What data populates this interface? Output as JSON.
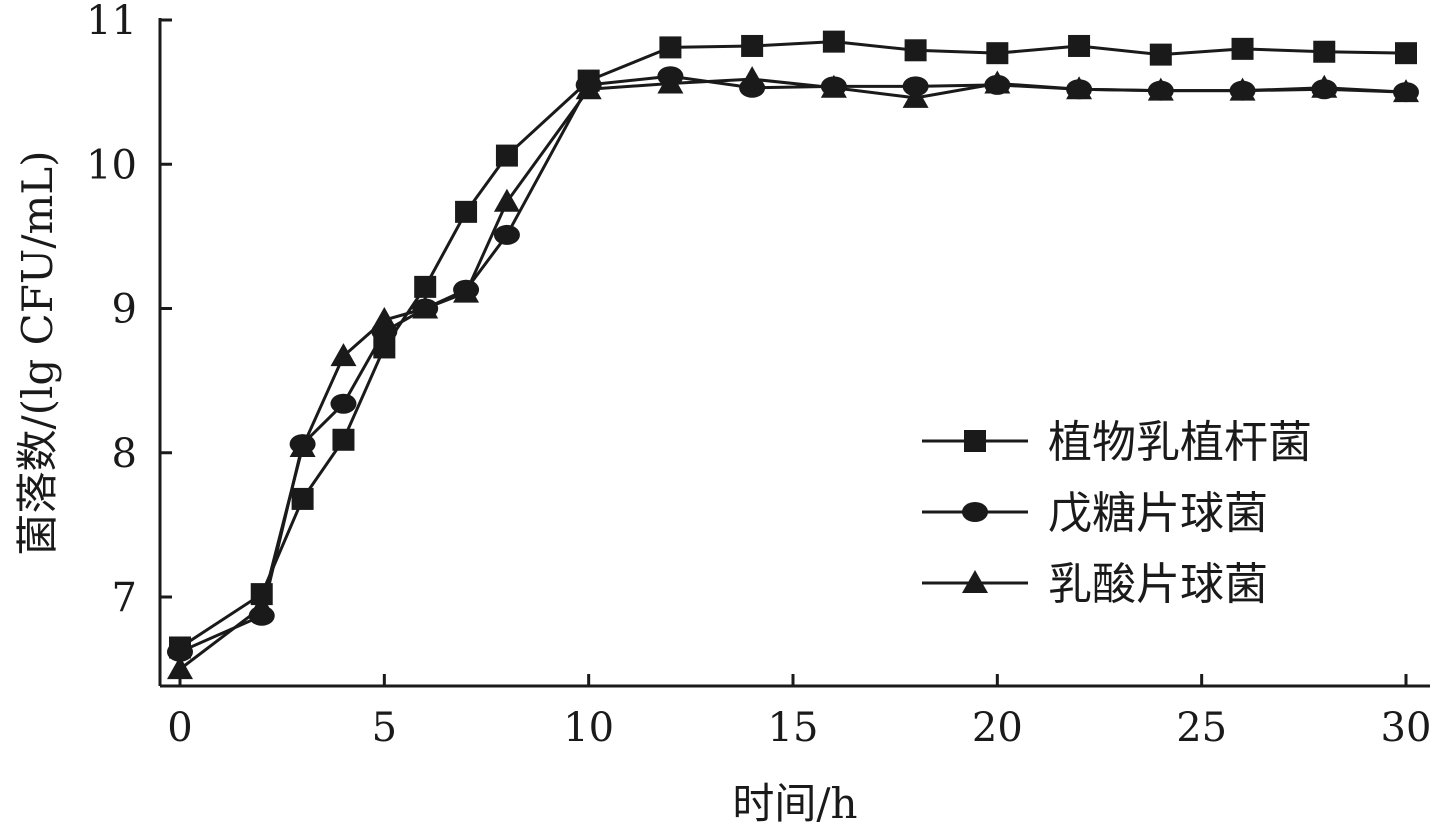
{
  "chart_data": {
    "type": "line",
    "title": "",
    "xlabel": "时间/h",
    "ylabel": "菌落数/(lg CFU/mL)",
    "xlim": [
      0,
      30
    ],
    "ylim": [
      6.4,
      11
    ],
    "x_ticks": [
      0,
      5,
      10,
      15,
      20,
      25,
      30
    ],
    "y_ticks": [
      7,
      8,
      9,
      10,
      11
    ],
    "grid": false,
    "legend_position": "lower-right",
    "series": [
      {
        "name": "植物乳植杆菌",
        "marker": "square",
        "color": "#1a1a1a",
        "x": [
          0,
          2,
          3,
          4,
          5,
          6,
          7,
          8,
          10,
          12,
          14,
          16,
          18,
          20,
          22,
          24,
          26,
          28,
          30
        ],
        "y": [
          6.65,
          7.02,
          7.68,
          8.09,
          8.73,
          9.15,
          9.67,
          10.06,
          10.58,
          10.81,
          10.82,
          10.85,
          10.79,
          10.77,
          10.82,
          10.76,
          10.8,
          10.78,
          10.77
        ]
      },
      {
        "name": "戊糖片球菌",
        "marker": "circle",
        "color": "#1a1a1a",
        "x": [
          0,
          2,
          3,
          4,
          5,
          6,
          7,
          8,
          10,
          12,
          14,
          16,
          18,
          20,
          22,
          24,
          26,
          28,
          30
        ],
        "y": [
          6.62,
          6.87,
          8.06,
          8.34,
          8.84,
          9.0,
          9.13,
          9.51,
          10.55,
          10.61,
          10.53,
          10.54,
          10.54,
          10.55,
          10.52,
          10.51,
          10.51,
          10.52,
          10.5
        ]
      },
      {
        "name": "乳酸片球菌",
        "marker": "triangle",
        "color": "#1a1a1a",
        "x": [
          0,
          2,
          3,
          4,
          5,
          6,
          7,
          8,
          10,
          12,
          14,
          16,
          18,
          20,
          22,
          24,
          26,
          28,
          30
        ],
        "y": [
          6.5,
          6.93,
          8.04,
          8.67,
          8.92,
          9.0,
          9.11,
          9.74,
          10.52,
          10.56,
          10.59,
          10.53,
          10.46,
          10.56,
          10.52,
          10.51,
          10.51,
          10.53,
          10.5
        ]
      }
    ]
  }
}
